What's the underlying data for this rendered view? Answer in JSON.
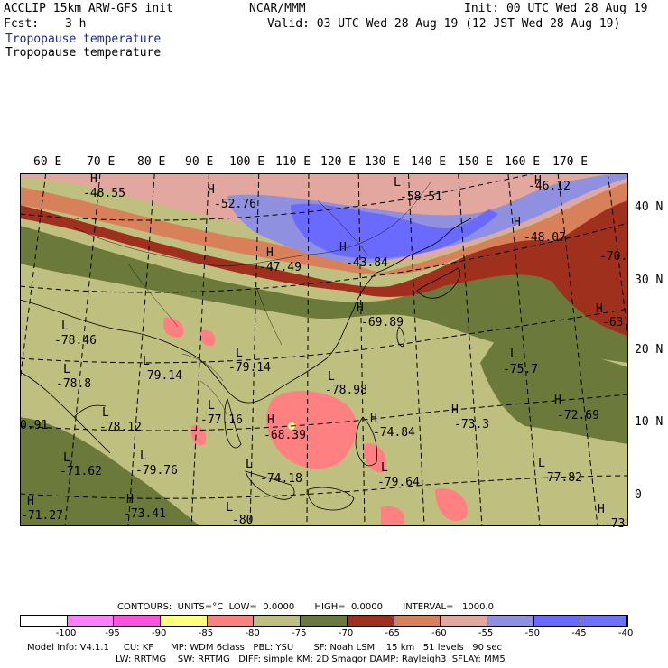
{
  "header": {
    "model": "ACCLIP 15km ARW-GFS init",
    "org": "NCAR/MMM",
    "init": "Init: 00 UTC Wed 28 Aug 19",
    "fcst_label": "Fcst:",
    "fcst_value": "3 h",
    "valid": "Valid: 03 UTC Wed 28 Aug 19 (12 JST Wed 28 Aug 19)",
    "field_1": "Tropopause temperature",
    "field_2": "Tropopause temperature"
  },
  "map": {
    "lon_labels": [
      "60 E",
      "70 E",
      "80 E",
      "90 E",
      "100 E",
      "110 E",
      "120 E",
      "130 E",
      "140 E",
      "150 E",
      "160 E",
      "170 E"
    ],
    "lat_labels": [
      "40 N",
      "30 N",
      "20 N",
      "10 N",
      "0"
    ],
    "extrema": [
      {
        "type": "H",
        "value": "-48.55"
      },
      {
        "type": "H",
        "value": "-52.76"
      },
      {
        "type": "L",
        "value": "-58.51"
      },
      {
        "type": "H",
        "value": "-46.12"
      },
      {
        "type": "H",
        "value": "-48.07"
      },
      {
        "type": "",
        "value": "-70."
      },
      {
        "type": "H",
        "value": "-47.49"
      },
      {
        "type": "H",
        "value": "-43.84"
      },
      {
        "type": "H",
        "value": "-69.89"
      },
      {
        "type": "H",
        "value": "-63."
      },
      {
        "type": "L",
        "value": "-78.46"
      },
      {
        "type": "L",
        "value": "-79.14"
      },
      {
        "type": "L",
        "value": "-78.8"
      },
      {
        "type": "L",
        "value": "-79.14"
      },
      {
        "type": "L",
        "value": "-78.98"
      },
      {
        "type": "L",
        "value": "-75.7"
      },
      {
        "type": "L",
        "value": "-77.16"
      },
      {
        "type": "H",
        "value": "-68.39"
      },
      {
        "type": "H",
        "value": "-74.84"
      },
      {
        "type": "H",
        "value": "-73.3"
      },
      {
        "type": "H",
        "value": "-72.69"
      },
      {
        "type": "L",
        "value": "-78.12"
      },
      {
        "type": "",
        "value": "0.91"
      },
      {
        "type": "L",
        "value": "-71.62"
      },
      {
        "type": "L",
        "value": "-79.76"
      },
      {
        "type": "L",
        "value": "-74.18"
      },
      {
        "type": "L",
        "value": "-79.64"
      },
      {
        "type": "L",
        "value": "-77.82"
      },
      {
        "type": "H",
        "value": "-71.27"
      },
      {
        "type": "H",
        "value": "-73.41"
      },
      {
        "type": "L",
        "value": "-80"
      },
      {
        "type": "H",
        "value": "-73"
      }
    ]
  },
  "footer": {
    "contours": "CONTOURS:  UNITS=°C  LOW=  0.0000       HIGH=  0.0000       INTERVAL=   1000.0",
    "colorbar_labels": [
      "-100",
      "-95",
      "-90",
      "-85",
      "-80",
      "-75",
      "-70",
      "-65",
      "-60",
      "-55",
      "-50",
      "-45",
      "-40",
      "°C"
    ],
    "colorbar_colors": [
      "#ffffff",
      "#ff80ff",
      "#ff50e0",
      "#ffff80",
      "#ff8080",
      "#bfbf80",
      "#6b7a3a",
      "#a0301e",
      "#d8805a",
      "#e2a8a0",
      "#9090e0",
      "#6a6aff",
      "#7070ff"
    ],
    "model_info_1": "Model Info: V4.1.1     CU: KF      MP: WDM 6class   PBL: YSU       SF: Noah LSM    15 km   51 levels   90 sec",
    "model_info_2": "LW: RRTMG    SW: RRTMG   DIFF: simple KM: 2D Smagor DAMP: Rayleigh3  SFLAY: MM5"
  }
}
